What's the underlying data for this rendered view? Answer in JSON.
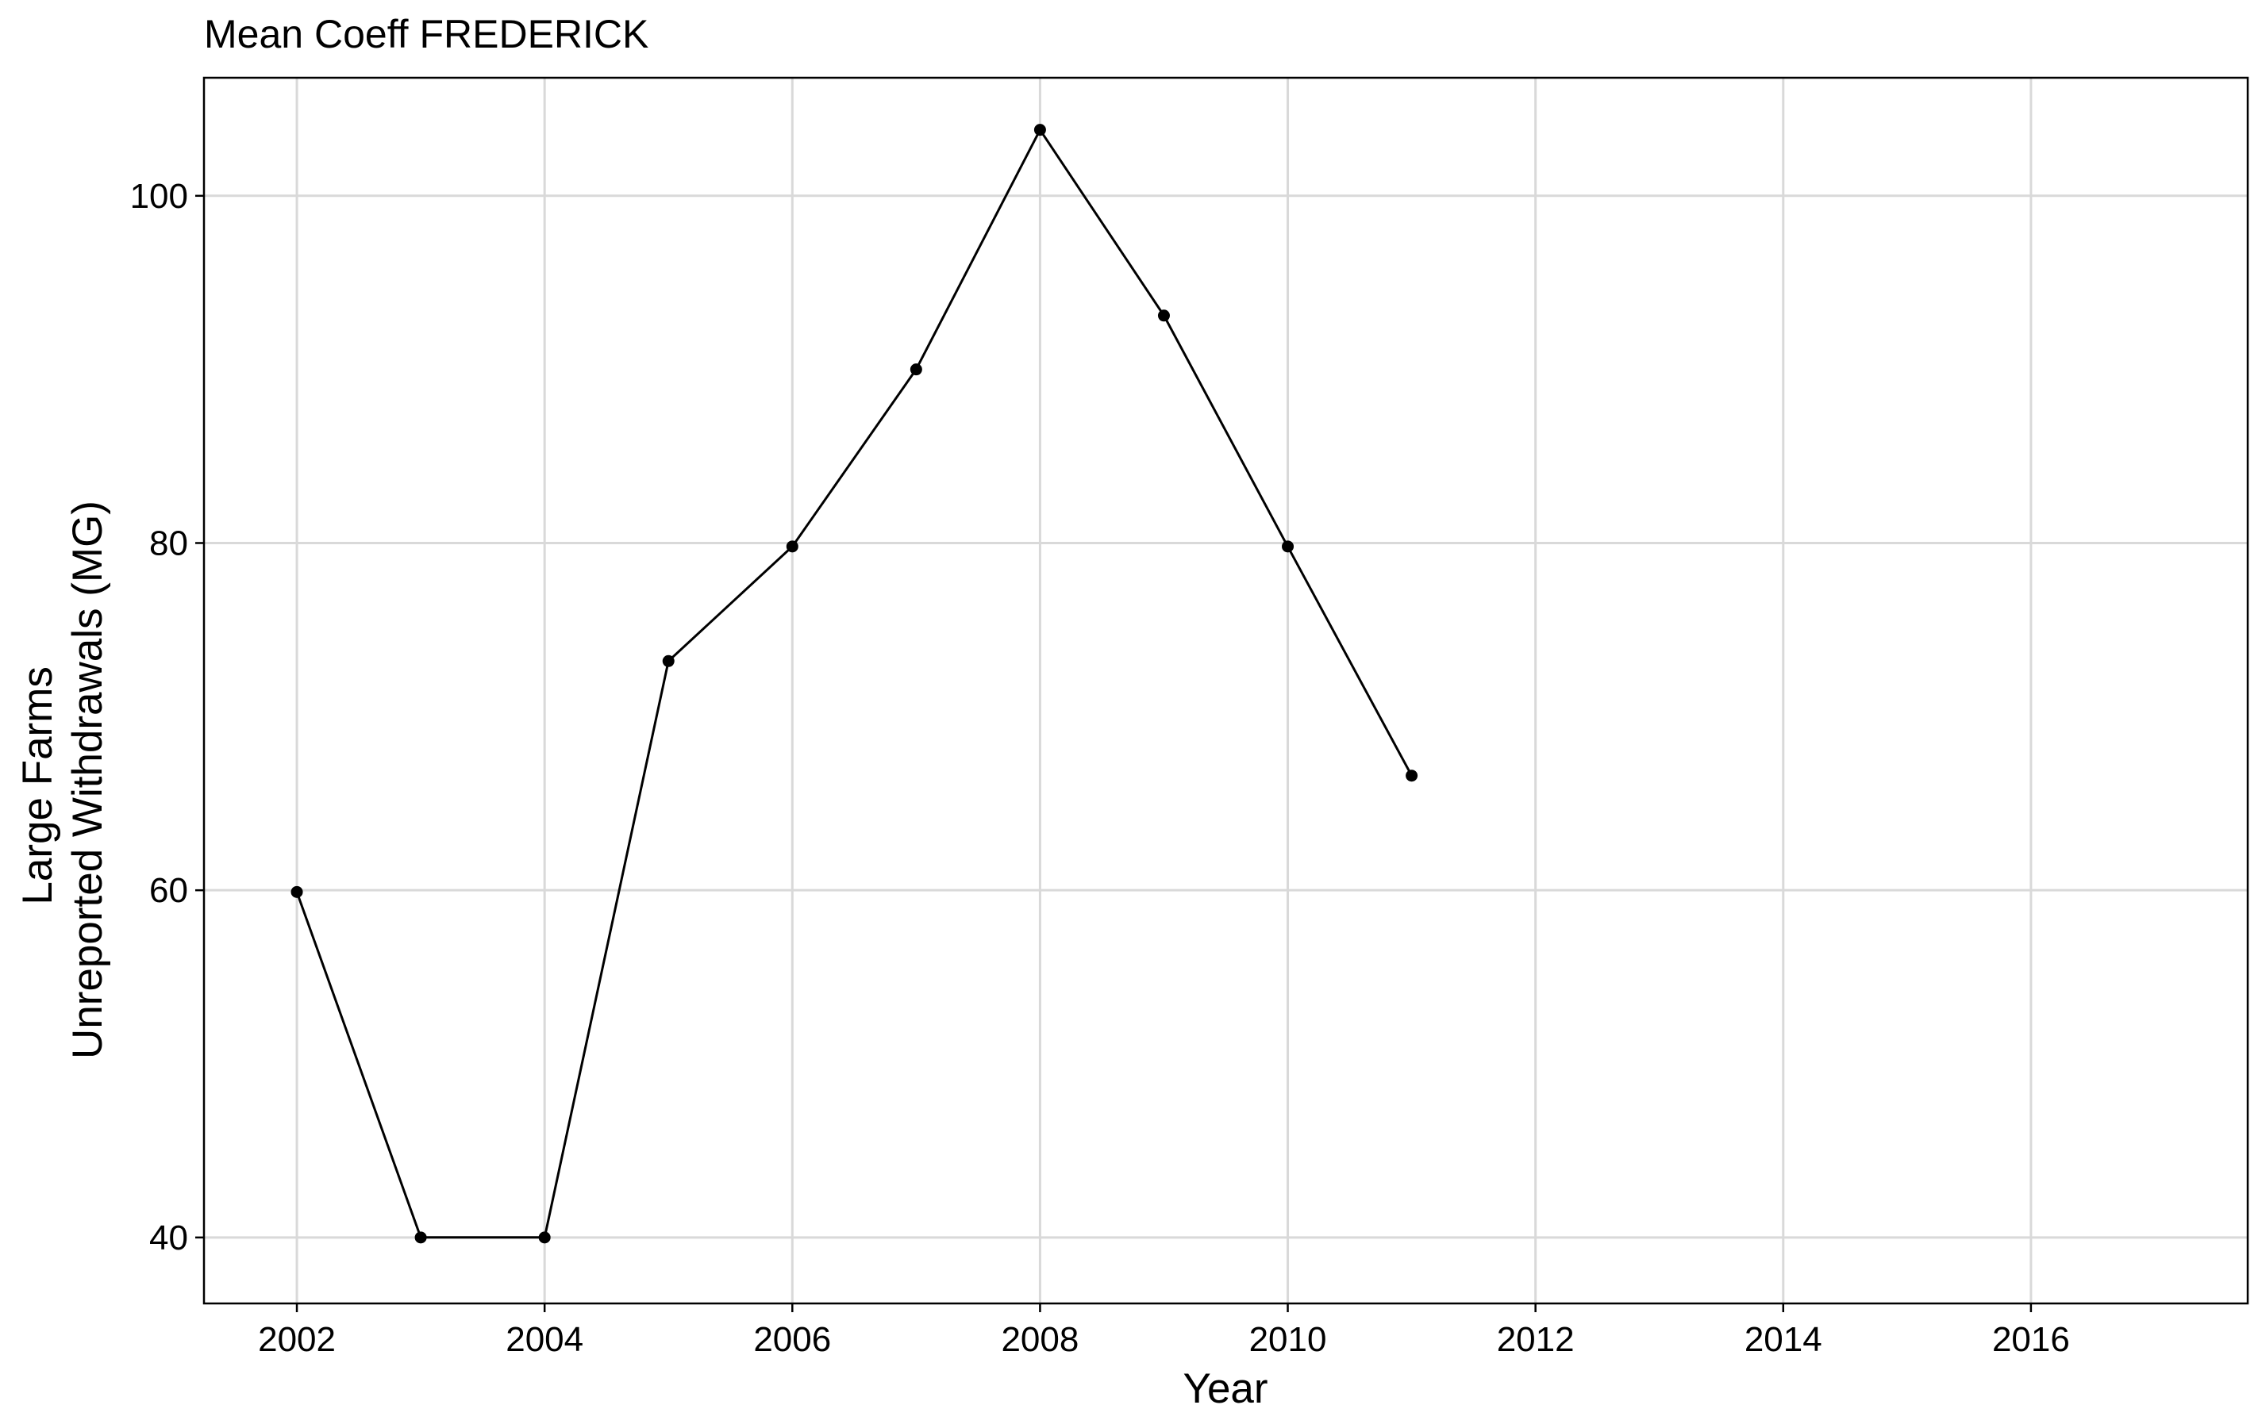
{
  "chart_data": {
    "type": "line",
    "title": "Mean Coeff FREDERICK",
    "xlabel": "Year",
    "ylabel_lines": [
      "Large Farms",
      "Unreported Withdrawals (MG)"
    ],
    "xlim": [
      2001.25,
      2017.75
    ],
    "ylim": [
      36.2,
      106.8
    ],
    "xticks": [
      2002,
      2004,
      2006,
      2008,
      2010,
      2012,
      2014,
      2016
    ],
    "xtick_labels": [
      "2002",
      "2004",
      "2006",
      "2008",
      "2010",
      "2012",
      "2014",
      "2016"
    ],
    "yticks": [
      40,
      60,
      80,
      100
    ],
    "ytick_labels": [
      "40",
      "60",
      "80",
      "100"
    ],
    "grid": true,
    "legend": "none",
    "series": [
      {
        "x": [
          2002,
          2003,
          2004,
          2005,
          2006,
          2007,
          2008,
          2009,
          2010,
          2011
        ],
        "y": [
          59.9,
          40.0,
          40.0,
          73.2,
          79.8,
          90.0,
          103.8,
          93.1,
          79.8,
          66.6
        ]
      }
    ],
    "colors": {
      "line": "#000000",
      "grid": "#d9d9d9",
      "background": "#ffffff"
    }
  }
}
